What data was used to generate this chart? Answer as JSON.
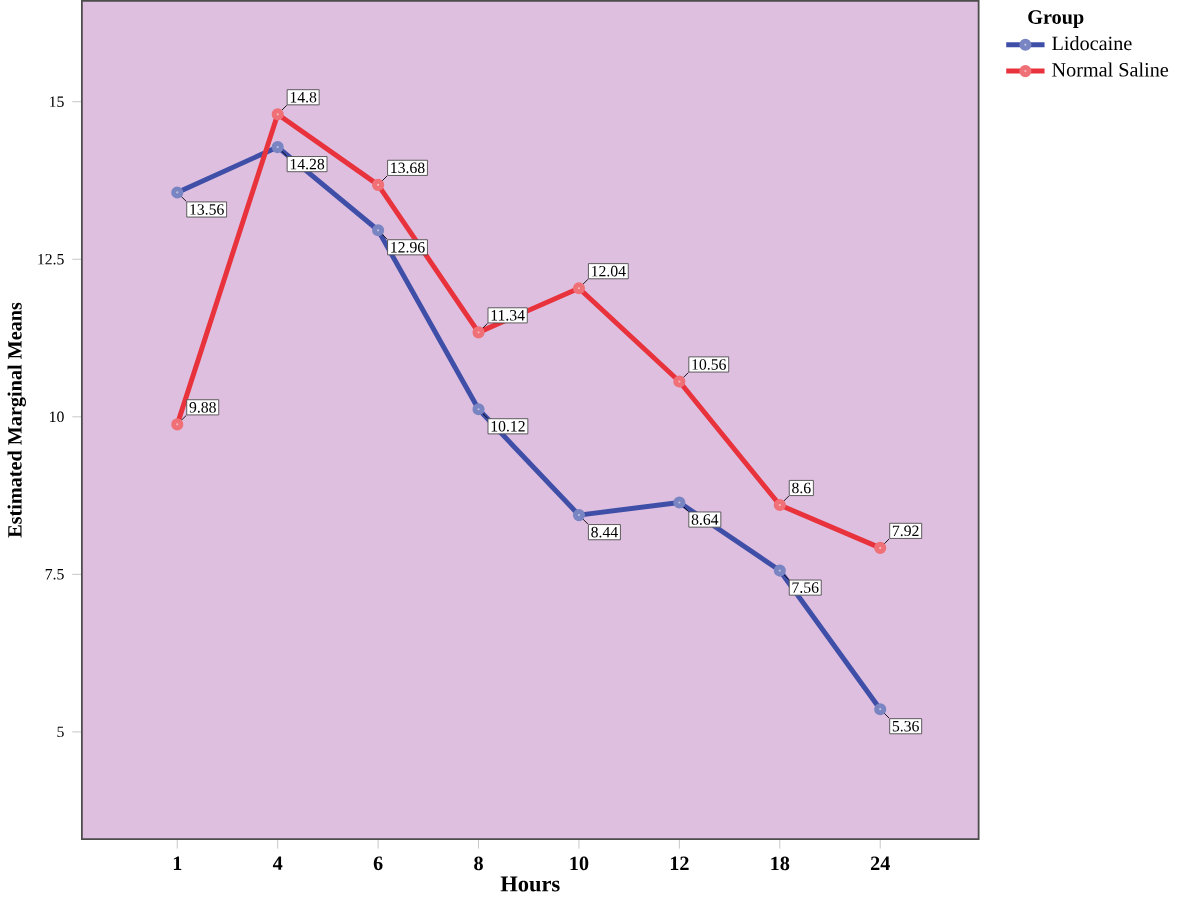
{
  "chart_data": {
    "type": "line",
    "xlabel": "Hours",
    "ylabel": "Estimated Marginal Means",
    "legend_title": "Group",
    "categories": [
      "1",
      "4",
      "6",
      "8",
      "10",
      "12",
      "18",
      "24"
    ],
    "series": [
      {
        "name": "Lidocaine",
        "color": "#3f4fa8",
        "values": [
          13.56,
          14.28,
          12.96,
          10.12,
          8.44,
          8.64,
          7.56,
          5.36
        ]
      },
      {
        "name": "Normal Saline",
        "color": "#e8323c",
        "values": [
          9.88,
          14.8,
          13.68,
          11.34,
          12.04,
          10.56,
          8.6,
          7.92
        ]
      }
    ],
    "ylim": [
      3.3,
      16.6
    ],
    "yticks": [
      5,
      {
        "value": 7.5,
        "label": "7.5"
      },
      10,
      {
        "value": 12.5,
        "label": "12.5"
      },
      15
    ],
    "data_labels": true,
    "legend": "top right",
    "marker": "circle",
    "line_style": "solid",
    "grid": false
  }
}
